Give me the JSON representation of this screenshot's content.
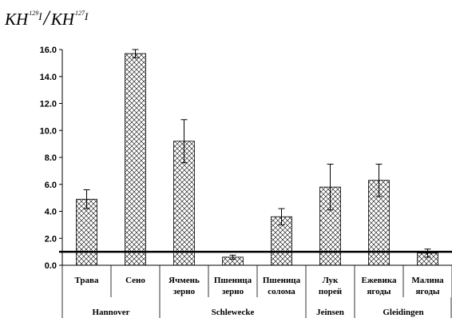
{
  "chart_data": {
    "type": "bar",
    "title": {
      "main": "KH",
      "sup1": "129",
      "iso1": "I",
      "sep": "/",
      "main2": "KH",
      "sup2": "127",
      "iso2": "I"
    },
    "ylim": [
      0,
      16
    ],
    "yticks": [
      "0.0",
      "2.0",
      "4.0",
      "6.0",
      "8.0",
      "10.0",
      "12.0",
      "14.0",
      "16.0"
    ],
    "reference_line": 1.0,
    "bar_fill": "crosshatch",
    "categories": [
      [
        "Трава"
      ],
      [
        "Сено"
      ],
      [
        "Ячмень",
        "зерно"
      ],
      [
        "Пшеница",
        "зерно"
      ],
      [
        "Пшеница",
        "солома"
      ],
      [
        "Лук",
        "порей"
      ],
      [
        "Ежевика",
        "ягоды"
      ],
      [
        "Малина",
        "ягоды"
      ]
    ],
    "values": [
      4.9,
      15.7,
      9.2,
      0.6,
      3.6,
      5.8,
      6.3,
      0.9
    ],
    "errors": [
      0.7,
      0.3,
      1.6,
      0.15,
      0.6,
      1.7,
      1.2,
      0.3
    ],
    "groups": [
      {
        "label": "Hannover",
        "span": [
          0,
          1
        ]
      },
      {
        "label": "Schlewecke",
        "span": [
          2,
          4
        ]
      },
      {
        "label": "Jeinsen",
        "span": [
          5,
          5
        ]
      },
      {
        "label": "Gleidingen",
        "span": [
          6,
          7
        ]
      }
    ],
    "colors": {
      "bar_stroke": "#000000",
      "hatch": "#000000",
      "background": "#ffffff"
    }
  }
}
